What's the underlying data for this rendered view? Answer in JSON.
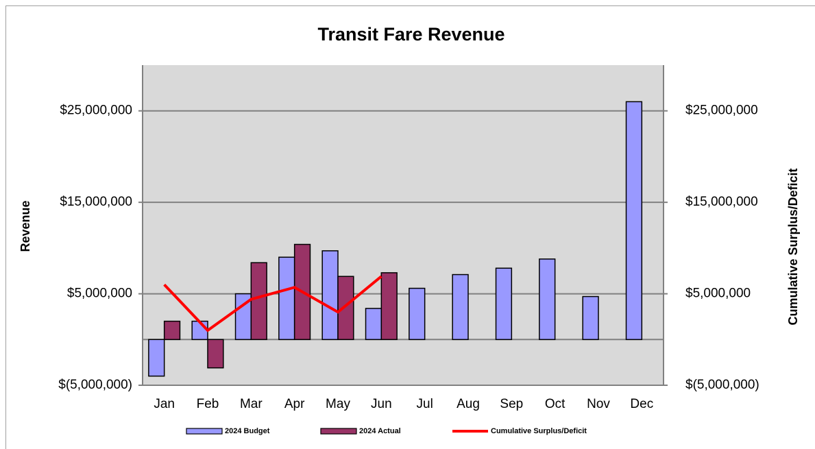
{
  "chart_data": {
    "type": "bar",
    "title": "Transit Fare Revenue",
    "y_label": "Revenue",
    "y2_label": "Cumulative Surplus/Deficit",
    "categories": [
      "Jan",
      "Feb",
      "Mar",
      "Apr",
      "May",
      "Jun",
      "Jul",
      "Aug",
      "Sep",
      "Oct",
      "Nov",
      "Dec"
    ],
    "series": [
      {
        "name": "2024 Budget",
        "type": "bar",
        "color": "#9999ff",
        "values": [
          -4000000,
          2000000,
          5000000,
          9000000,
          9700000,
          3400000,
          5600000,
          7100000,
          7800000,
          8800000,
          4700000,
          26000000
        ]
      },
      {
        "name": "2024 Actual",
        "type": "bar",
        "color": "#993366",
        "values": [
          2000000,
          -3100000,
          8400000,
          10400000,
          6900000,
          7300000,
          null,
          null,
          null,
          null,
          null,
          null
        ]
      },
      {
        "name": "Cumulative Surplus/Deficit",
        "type": "line",
        "axis": "y2",
        "color": "#ff0000",
        "values": [
          6000000,
          1000000,
          4400000,
          5700000,
          3000000,
          6900000,
          null,
          null,
          null,
          null,
          null,
          null
        ]
      }
    ],
    "ylim": [
      -5000000,
      30000000
    ],
    "yticks": [
      {
        "value": -5000000,
        "label": "$(5,000,000)"
      },
      {
        "value": 5000000,
        "label": "$5,000,000"
      },
      {
        "value": 15000000,
        "label": "$15,000,000"
      },
      {
        "value": 25000000,
        "label": "$25,000,000"
      }
    ],
    "y2lim": [
      -5000000,
      30000000
    ],
    "y2ticks": [
      {
        "value": -5000000,
        "label": "$(5,000,000)"
      },
      {
        "value": 5000000,
        "label": "$5,000,000"
      },
      {
        "value": 15000000,
        "label": "$15,000,000"
      },
      {
        "value": 25000000,
        "label": "$25,000,000"
      }
    ],
    "grid": true,
    "legend": "bottom"
  }
}
